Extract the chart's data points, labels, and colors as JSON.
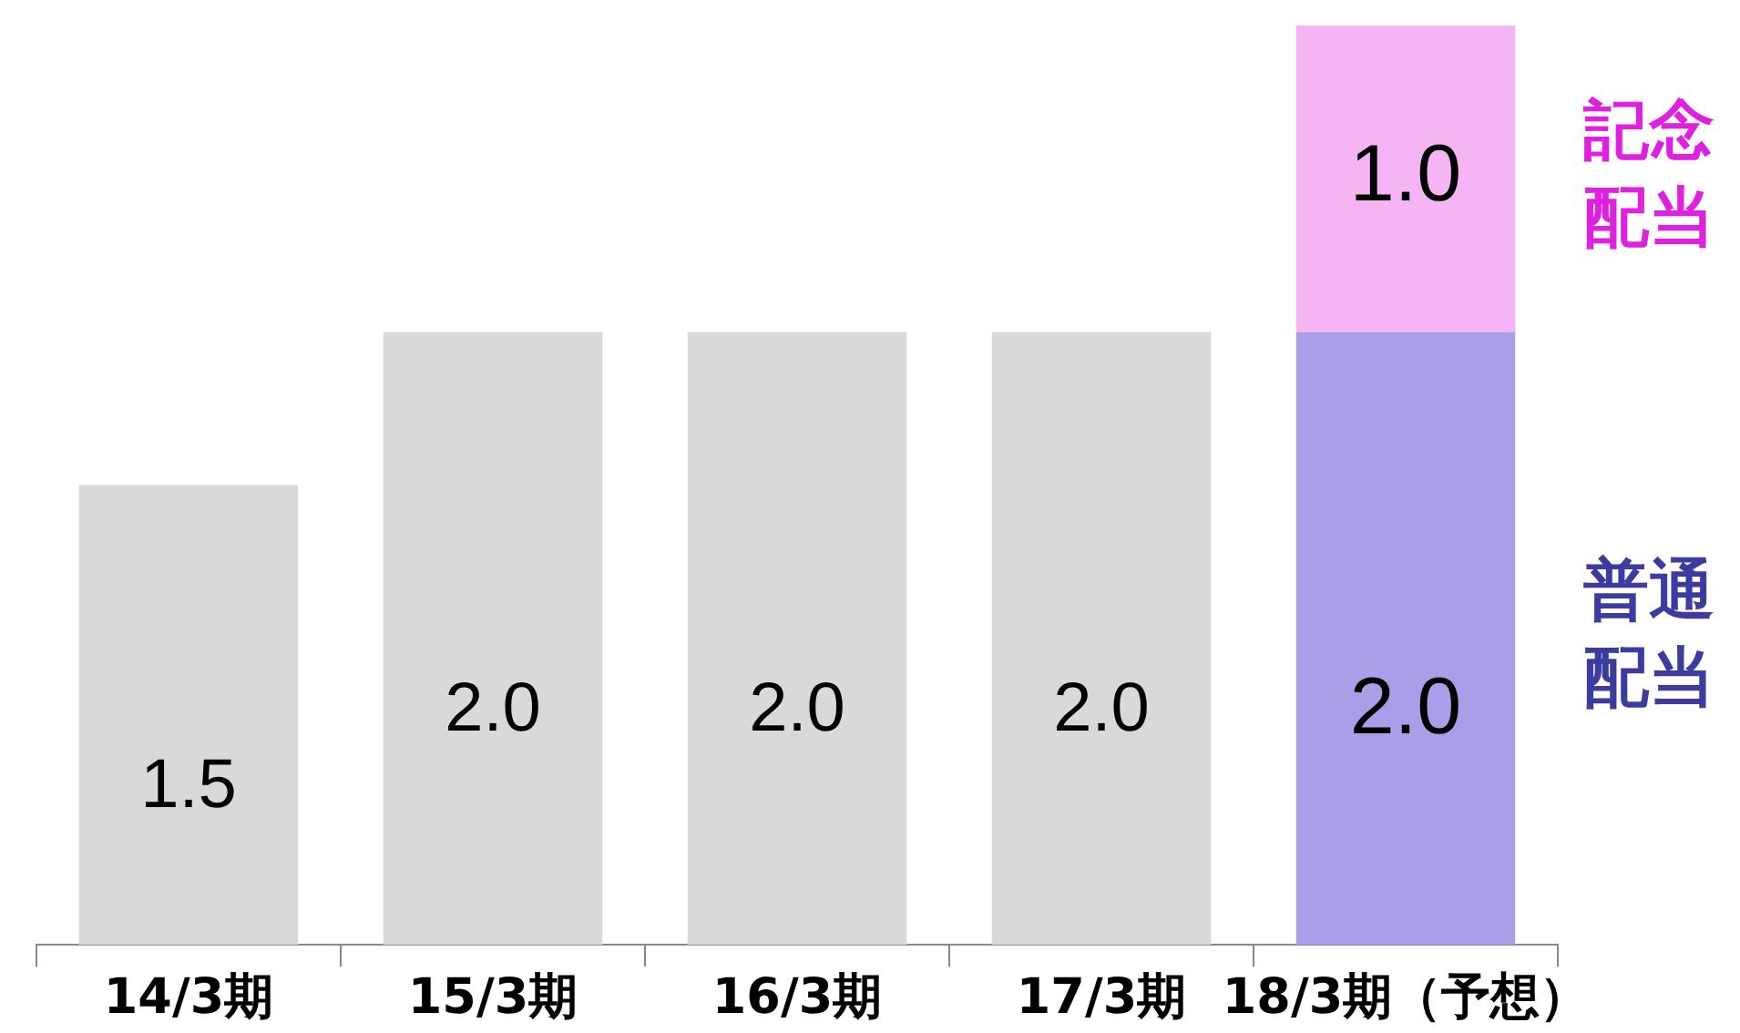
{
  "chart_data": {
    "type": "bar",
    "stacked": true,
    "ylim": [
      0,
      3
    ],
    "tick_labels": "x",
    "categories": [
      "14/3期",
      "15/3期",
      "16/3期",
      "17/3期",
      "18/3期（予想）"
    ],
    "series": [
      {
        "name": "普通配当",
        "colors": [
          "#d9d9d9",
          "#d9d9d9",
          "#d9d9d9",
          "#d9d9d9",
          "#ab9ee8"
        ],
        "values": [
          1.5,
          2.0,
          2.0,
          2.0,
          2.0
        ],
        "value_labels": [
          "1.5",
          "2.0",
          "2.0",
          "2.0",
          "2.0"
        ]
      },
      {
        "name": "記念配当",
        "color": "#f5b5f5",
        "values": [
          null,
          null,
          null,
          null,
          1.0
        ],
        "value_labels": [
          null,
          null,
          null,
          null,
          "1.0"
        ]
      }
    ]
  }
}
